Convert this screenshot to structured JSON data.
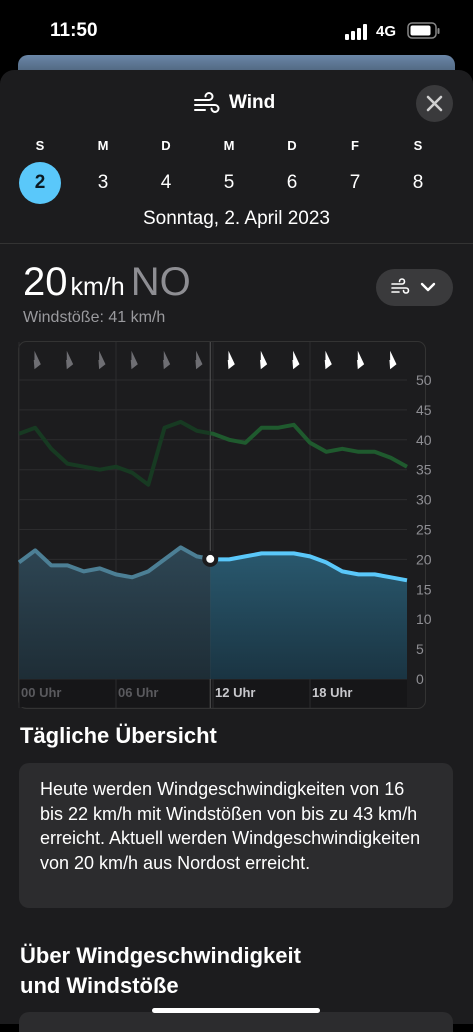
{
  "status": {
    "time": "11:50",
    "network": "4G"
  },
  "header": {
    "title": "Wind"
  },
  "days": [
    {
      "letter": "S",
      "number": "2"
    },
    {
      "letter": "M",
      "number": "3"
    },
    {
      "letter": "D",
      "number": "4"
    },
    {
      "letter": "M",
      "number": "5"
    },
    {
      "letter": "D",
      "number": "6"
    },
    {
      "letter": "F",
      "number": "7"
    },
    {
      "letter": "S",
      "number": "8"
    }
  ],
  "selected_day": 0,
  "date_label": "Sonntag, 2. April 2023",
  "current": {
    "speed": "20",
    "unit": "km/h",
    "direction": "NO",
    "gusts": "Windstöße: 41 km/h"
  },
  "chart_data": {
    "type": "area",
    "x": [
      0,
      1,
      2,
      3,
      4,
      5,
      6,
      7,
      8,
      9,
      10,
      11,
      12,
      13,
      14,
      15,
      16,
      17,
      18,
      19,
      20,
      21,
      22,
      23,
      24
    ],
    "series": [
      {
        "name": "Wind",
        "color": "#5ac8fa",
        "values": [
          19.5,
          21.5,
          19,
          19,
          18,
          18.5,
          17.5,
          17,
          18,
          20,
          22,
          20.5,
          20,
          20,
          20.5,
          21,
          21,
          21,
          20.5,
          19.5,
          18,
          17.5,
          17.5,
          17,
          16.5
        ]
      },
      {
        "name": "Windstöße",
        "color": "#1f5a2e",
        "values": [
          41,
          42,
          38.5,
          36,
          35.5,
          35,
          35.5,
          34.5,
          32.5,
          42,
          43,
          41.5,
          41,
          40,
          39.5,
          42,
          42,
          42.5,
          39.5,
          38,
          38.5,
          38,
          38,
          37,
          35.5
        ]
      }
    ],
    "now": 11.83,
    "xlim": [
      0,
      24
    ],
    "xticks": [
      {
        "value": 0,
        "label": "00 Uhr"
      },
      {
        "value": 6,
        "label": "06 Uhr"
      },
      {
        "value": 12,
        "label": "12 Uhr"
      },
      {
        "value": 18,
        "label": "18 Uhr"
      }
    ],
    "ylim": [
      0,
      50
    ],
    "yticks": [
      0,
      5,
      10,
      15,
      20,
      25,
      30,
      35,
      40,
      45,
      50
    ],
    "grid": true
  },
  "summary": {
    "title": "Tägliche Übersicht",
    "text": "Heute werden Windgeschwindigkeiten von 16 bis 22 km/h mit Windstößen von bis zu 43 km/h erreicht. Aktuell werden Windgeschwindigkeiten von 20 km/h aus Nordost erreicht."
  },
  "about": {
    "title": [
      "Über Windgeschwindigkeit",
      "und Windstöße"
    ]
  }
}
